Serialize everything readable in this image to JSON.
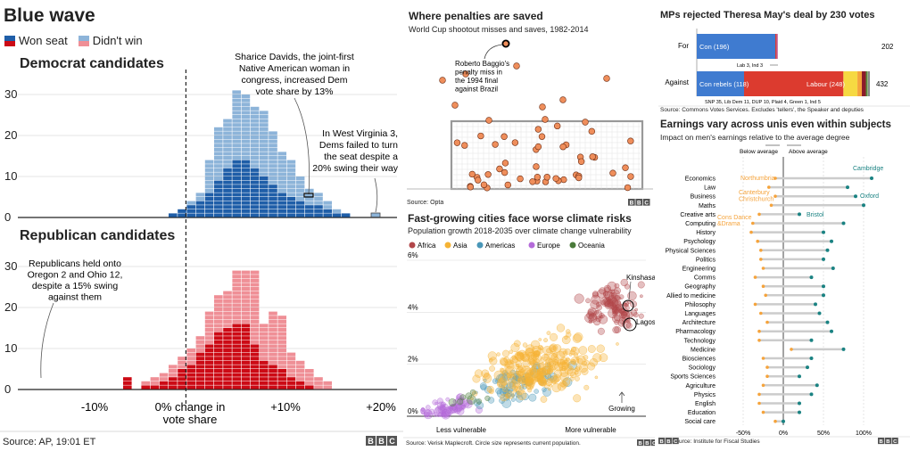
{
  "panels": {
    "wave": {
      "title": "Blue wave",
      "legend": [
        "Won seat",
        "Didn't win"
      ],
      "dem_heading": "Democrat candidates",
      "rep_heading": "Republican candidates",
      "dem_ann1": [
        "Sharice Davids, the joint-first",
        "Native American woman in",
        "congress, increased Dem",
        "vote share by 13%"
      ],
      "dem_ann2": [
        "In West Virginia 3,",
        "Dems failed to turn",
        "the seat despite a",
        "20% swing their way"
      ],
      "rep_ann": [
        "Republicans held onto",
        "Oregon 2 and Ohio 12,",
        "despite a 15% swing",
        "against them"
      ],
      "xaxis_center": [
        "0% change in",
        "vote share"
      ],
      "source": "Source: AP, 19:01 ET"
    },
    "penalties": {
      "title": "Where penalties are saved",
      "subtitle": "World Cup shootout misses and saves, 1982-2014",
      "annotation": [
        "Roberto Baggio's",
        "penalty miss in",
        "the 1994 final",
        "against Brazil"
      ],
      "source": "Source: Opta"
    },
    "climate": {
      "title": "Fast-growing cities face worse climate risks",
      "subtitle": "Population growth 2018-2035 over climate change vulnerability",
      "source": "Source: Verisk Maplecroft. Circle size represents current population.",
      "label_less": "Less vulnerable",
      "label_more": "More vulnerable",
      "label_growing": "Growing",
      "city1": "Kinshasa",
      "city2": "Lagos"
    },
    "brexit": {
      "title": "MPs rejected Theresa May's deal by 230 votes",
      "row_for": "For",
      "row_against": "Against",
      "seg_con": "Con (196)",
      "seg_rebels": "Con rebels (118)",
      "seg_labour": "Labour (248)",
      "total_for": "202",
      "total_against": "432",
      "note_for": "Lab 3, Ind 3",
      "note_against": "SNP 35, Lib Dem 11, DUP 10, Plaid 4, Green 1, Ind 5",
      "source": "Source: Commons Votes Services. Excludes 'tellers', the Speaker and deputies"
    },
    "earnings": {
      "title": "Earnings vary across unis even within subjects",
      "subtitle": "Impact on men's earnings relative to the average degree",
      "below": "Below average",
      "above": "Above average",
      "ann_cambridge": "Cambridge",
      "ann_oxford": "Oxford",
      "ann_bristol": "Bristol",
      "ann_northumbria": "Northumbria",
      "ann_canterbury": "Canterbury\nChristchurch",
      "ann_dance": "Cons Dance\n&Drama",
      "source": "Source: Institute for Fiscal Studies"
    }
  },
  "colors": {
    "dem_won": "#1f5ea8",
    "dem_lost": "#8db4d9",
    "rep_won": "#cc0a15",
    "rep_lost": "#ef8f96",
    "africa": "#b2474a",
    "asia": "#f5b335",
    "americas": "#4a97b8",
    "europe": "#b46bd9",
    "oceania": "#4a7a3a",
    "con": "#3f7bd0",
    "labour": "#dc3b2f",
    "oxford_teal": "#1a8282",
    "low_orange": "#f5a33b"
  },
  "chart_data": [
    {
      "type": "bar",
      "id": "democrat-histogram",
      "title": "Democrat candidates",
      "xlabel": "0% change in vote share",
      "x": [
        -7,
        -6,
        -5,
        -4,
        -3,
        -2,
        -1,
        0,
        1,
        2,
        3,
        4,
        5,
        6,
        7,
        8,
        9,
        10,
        11,
        12,
        13,
        14,
        15,
        16,
        17,
        18,
        19,
        20
      ],
      "x_ticks": [
        "-10%",
        "0% change in vote share",
        "+10%",
        "+20%"
      ],
      "y_ticks": [
        0,
        10,
        20,
        30
      ],
      "ylim": [
        0,
        33
      ],
      "series": [
        {
          "name": "Won seat",
          "values": [
            0,
            0,
            0,
            0,
            0,
            1,
            2,
            3,
            4,
            6,
            9,
            12,
            14,
            14,
            12,
            10,
            8,
            6,
            5,
            4,
            3,
            3,
            2,
            1,
            1,
            0,
            0,
            0
          ]
        },
        {
          "name": "Didn't win",
          "values": [
            0,
            0,
            0,
            0,
            0,
            0,
            0,
            1,
            2,
            8,
            13,
            12,
            17,
            16,
            15,
            16,
            13,
            10,
            9,
            6,
            4,
            3,
            2,
            1,
            0,
            0,
            0,
            0
          ]
        }
      ]
    },
    {
      "type": "bar",
      "id": "republican-histogram",
      "title": "Republican candidates",
      "series": [
        {
          "name": "Won seat",
          "values": [
            3,
            0,
            1,
            1,
            2,
            3,
            5,
            6,
            9,
            11,
            14,
            15,
            16,
            16,
            11,
            7,
            6,
            5,
            3,
            2,
            1,
            0,
            0,
            0,
            0,
            0,
            0,
            0
          ]
        },
        {
          "name": "Didn't win",
          "values": [
            0,
            0,
            1,
            2,
            2,
            3,
            3,
            4,
            4,
            8,
            9,
            9,
            13,
            13,
            18,
            9,
            13,
            13,
            6,
            5,
            4,
            3,
            2,
            0,
            0,
            0,
            0,
            0
          ]
        }
      ],
      "y_ticks": [
        0,
        10,
        20,
        30
      ],
      "ylim": [
        0,
        33
      ]
    },
    {
      "type": "bar",
      "id": "brexit-vote",
      "title": "MPs rejected Theresa May's deal by 230 votes",
      "categories": [
        "For",
        "Against"
      ],
      "series": [
        {
          "name": "Con (196)",
          "values": [
            196,
            0
          ]
        },
        {
          "name": "Con rebels (118)",
          "values": [
            0,
            118
          ]
        },
        {
          "name": "Labour (248)",
          "values": [
            0,
            248
          ]
        }
      ],
      "totals": [
        202,
        432
      ]
    },
    {
      "type": "scatter",
      "id": "climate-scatter",
      "title": "Fast-growing cities face worse climate risks",
      "y_ticks": [
        "0%",
        "2%",
        "4%",
        "6%"
      ],
      "legend": [
        "Africa",
        "Asia",
        "Americas",
        "Europe",
        "Oceania"
      ],
      "xlabels": [
        "Less vulnerable",
        "More vulnerable"
      ]
    },
    {
      "type": "scatter",
      "id": "earnings-by-subject",
      "title": "Earnings vary across unis even within subjects",
      "categories": [
        "Economics",
        "Law",
        "Business",
        "Maths",
        "Creative arts",
        "Computing",
        "History",
        "Psychology",
        "Physical Sciences",
        "Politics",
        "Engineering",
        "Comms",
        "Geography",
        "Allied to medicine",
        "Philosophy",
        "Languages",
        "Architecture",
        "Pharmacology",
        "Technology",
        "Medicine",
        "Biosciences",
        "Sociology",
        "Sports Sciences",
        "Agriculture",
        "Physics",
        "English",
        "Education",
        "Social care"
      ],
      "x_ticks": [
        "-50%",
        "0%",
        "50%",
        "100%"
      ],
      "low": [
        -10,
        -18,
        -10,
        -15,
        -30,
        -38,
        -40,
        -32,
        -28,
        -28,
        -25,
        -35,
        -25,
        -22,
        -35,
        -28,
        -20,
        -30,
        -30,
        10,
        -25,
        -20,
        -20,
        -25,
        -30,
        -30,
        -25,
        -10
      ],
      "high": [
        110,
        80,
        90,
        100,
        20,
        75,
        50,
        60,
        55,
        50,
        62,
        35,
        50,
        50,
        40,
        45,
        55,
        60,
        35,
        75,
        35,
        30,
        20,
        42,
        35,
        20,
        20,
        0
      ]
    }
  ]
}
